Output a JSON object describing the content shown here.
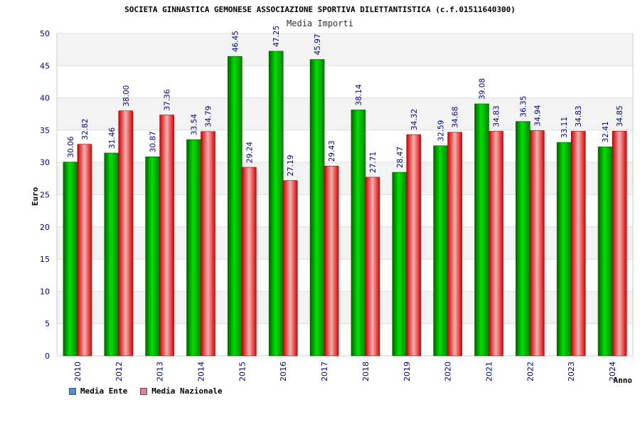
{
  "colors": {
    "ente": "#00c000",
    "nazionale": "#ff2020",
    "legend_ente": "#4f8fe8",
    "legend_nazionale": "#e27aa6",
    "axis_text": "#000080",
    "value_text": "#000080"
  },
  "legend": {
    "ente": "Media Ente",
    "nazionale": "Media Nazionale"
  },
  "chart_data": {
    "type": "bar",
    "title": "SOCIETA GINNASTICA GEMONESE ASSOCIAZIONE SPORTIVA DILETTANTISTICA (c.f.01511640300)",
    "subtitle": "Media Importi",
    "xlabel": "Anno",
    "ylabel": "Euro",
    "ylim": [
      0,
      50
    ],
    "yticks": [
      0,
      5,
      10,
      15,
      20,
      25,
      30,
      35,
      40,
      45,
      50
    ],
    "grid": true,
    "legend_position": "bottom-left",
    "categories": [
      "2010",
      "2012",
      "2013",
      "2014",
      "2015",
      "2016",
      "2017",
      "2018",
      "2019",
      "2020",
      "2021",
      "2022",
      "2023",
      "2024"
    ],
    "series": [
      {
        "name": "Media Ente",
        "values": [
          30.06,
          31.46,
          30.87,
          33.54,
          46.45,
          47.25,
          45.97,
          38.14,
          28.47,
          32.59,
          39.08,
          36.35,
          33.11,
          32.41
        ],
        "labels": [
          "30.06",
          "31.46",
          "30.87",
          "33.54",
          "46.45",
          "47.25",
          "45.97",
          "38.14",
          "28.47",
          "32.59",
          "39.08",
          "36.35",
          "33.11",
          "32.41"
        ]
      },
      {
        "name": "Media Nazionale",
        "values": [
          32.82,
          38.0,
          37.36,
          34.79,
          29.24,
          27.19,
          29.43,
          27.71,
          34.32,
          34.68,
          34.83,
          34.94,
          34.83,
          34.85
        ],
        "labels": [
          "32.82",
          "38.00",
          "37.36",
          "34.79",
          "29.24",
          "27.19",
          "29.43",
          "27.71",
          "34.32",
          "34.68",
          "34.83",
          "34.94",
          "34.83",
          "34.85"
        ]
      }
    ]
  }
}
